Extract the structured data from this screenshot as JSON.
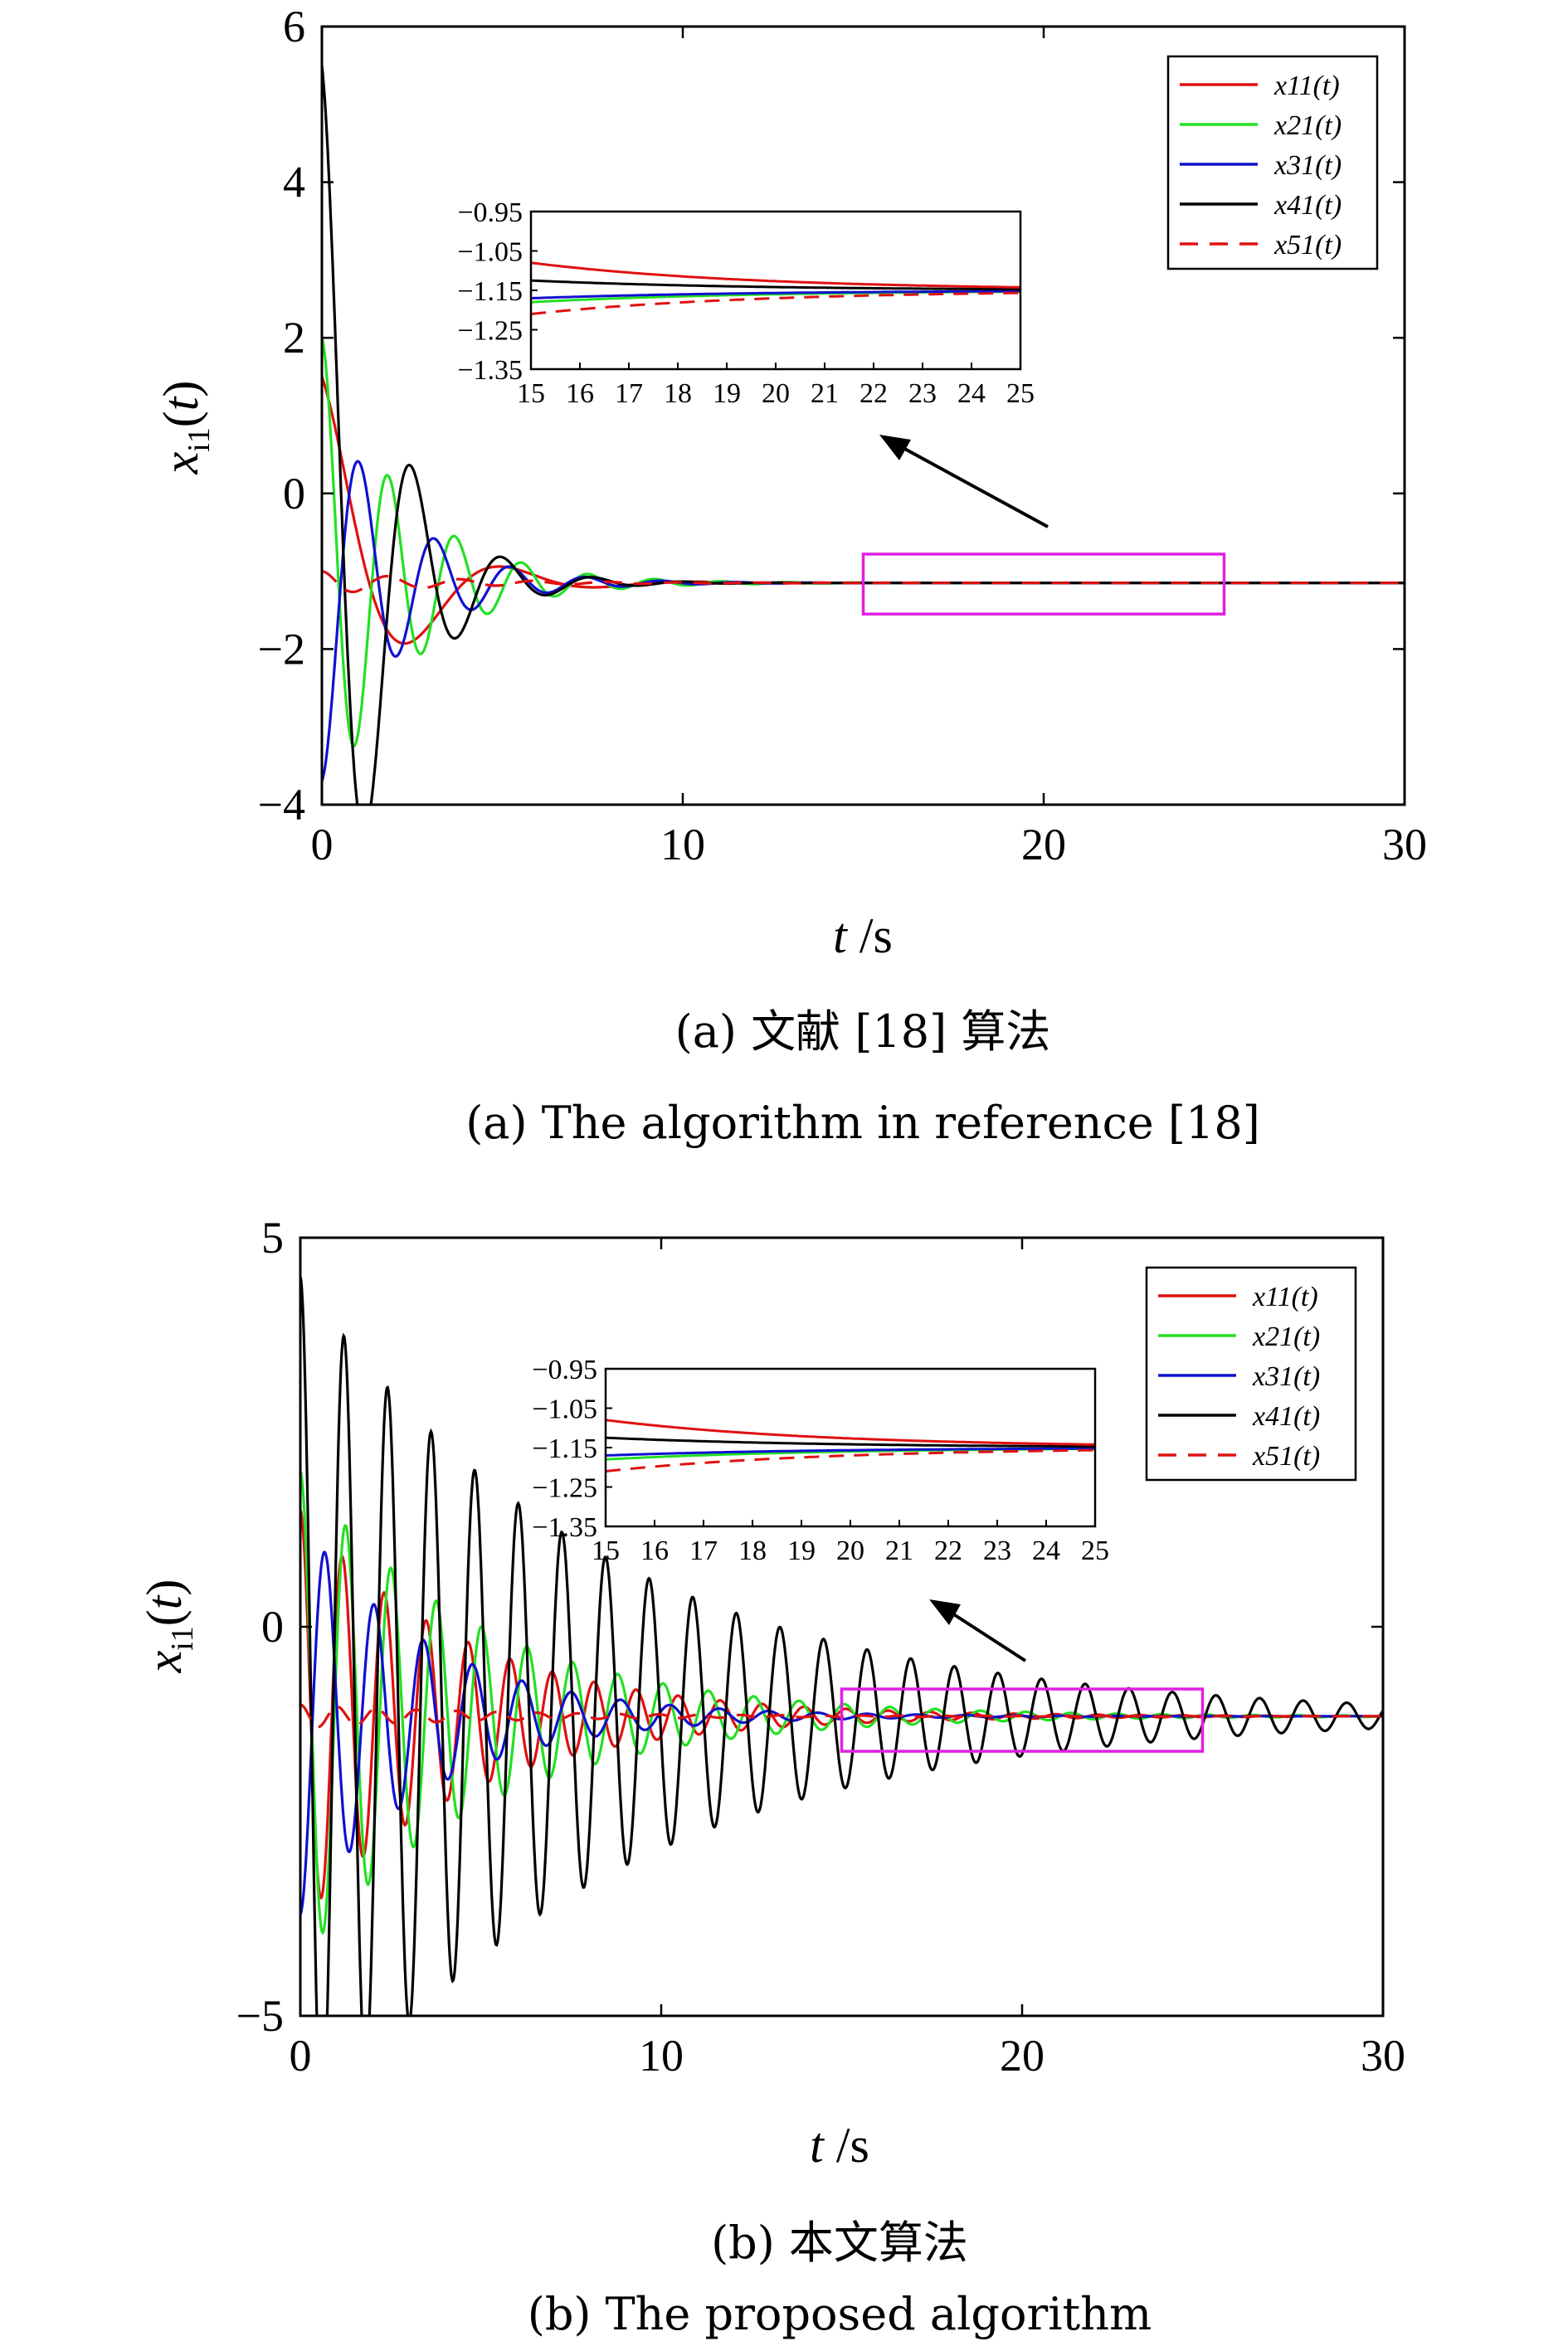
{
  "chart_data": [
    {
      "type": "line",
      "caption_cn": "(a) 文献 [18] 算法",
      "caption_en": "(a) The algorithm in reference [18]",
      "xlabel": "t /s",
      "ylabel": "x_i1(t)",
      "xlim": [
        0,
        30
      ],
      "ylim": [
        -4,
        6
      ],
      "xticks": [
        "0",
        "10",
        "20",
        "30"
      ],
      "yticks": [
        "−4",
        "−2",
        "0",
        "2",
        "4",
        "6"
      ],
      "legend_position": "top-right",
      "series": [
        {
          "name": "x11(t)",
          "color": "#e01010",
          "dash": false,
          "x0": 1.5,
          "amp": 2.65,
          "decay": 0.5,
          "freq": 1.2,
          "phase": 0.0
        },
        {
          "name": "x21(t)",
          "color": "#22e022",
          "dash": false,
          "x0": 2.0,
          "amp": 3.2,
          "decay": 0.45,
          "freq": 3.4,
          "phase": 0.0
        },
        {
          "name": "x31(t)",
          "color": "#1010d0",
          "dash": false,
          "x0": -3.7,
          "amp": -2.55,
          "decay": 0.48,
          "freq": 3.0,
          "phase": 0.0
        },
        {
          "name": "x41(t)",
          "color": "#000000",
          "dash": false,
          "x0": 5.5,
          "amp": 6.65,
          "decay": 0.6,
          "freq": 2.5,
          "phase": 0.0
        },
        {
          "name": "x51(t)",
          "color": "#e01010",
          "dash": true,
          "x0": -1.0,
          "amp": -1.0,
          "decay": 0.3,
          "freq": 3.1,
          "phase": 0.7
        }
      ],
      "equilibrium": -1.15,
      "highlight_box": {
        "x": [
          15,
          25
        ],
        "y": [
          -1.55,
          -0.78
        ]
      },
      "inset": {
        "xlim": [
          15,
          25
        ],
        "ylim": [
          -1.35,
          -0.95
        ],
        "xticks": [
          "15",
          "16",
          "17",
          "18",
          "19",
          "20",
          "21",
          "22",
          "23",
          "24",
          "25"
        ],
        "yticks": [
          "−0.95",
          "−1.05",
          "−1.15",
          "−1.25",
          "−1.35"
        ]
      }
    },
    {
      "type": "line",
      "caption_cn": "(b) 本文算法",
      "caption_en": "(b) The proposed algorithm",
      "xlabel": "t /s",
      "ylabel": "x_i1(t)",
      "xlim": [
        0,
        30
      ],
      "ylim": [
        -5,
        5
      ],
      "xticks": [
        "0",
        "10",
        "20",
        "30"
      ],
      "yticks": [
        "−5",
        "0",
        "5"
      ],
      "legend_position": "top-right",
      "series": [
        {
          "name": "x11(t)",
          "color": "#e01010",
          "dash": false,
          "x0": 1.5,
          "amp": 2.6,
          "decay": 0.22,
          "freq": 5.4,
          "phase": 0.0
        },
        {
          "name": "x21(t)",
          "color": "#22e022",
          "dash": false,
          "x0": 2.0,
          "amp": 3.3,
          "decay": 0.2,
          "freq": 5.0,
          "phase": 0.0
        },
        {
          "name": "x31(t)",
          "color": "#1010d0",
          "dash": false,
          "x0": -3.7,
          "amp": -2.6,
          "decay": 0.28,
          "freq": 4.6,
          "phase": 0.0
        },
        {
          "name": "x41(t)",
          "color": "#000000",
          "dash": false,
          "x0": 4.5,
          "amp": 5.6,
          "decay": 0.12,
          "freq": 5.2,
          "phase": 0.0
        },
        {
          "name": "x51(t)",
          "color": "#e01010",
          "dash": true,
          "x0": -1.0,
          "amp": -1.5,
          "decay": 0.18,
          "freq": 5.6,
          "phase": 0.9
        }
      ],
      "equilibrium": -1.15,
      "highlight_box": {
        "x": [
          15,
          25
        ],
        "y": [
          -1.6,
          -0.8
        ]
      },
      "inset": {
        "xlim": [
          15,
          25
        ],
        "ylim": [
          -1.35,
          -0.95
        ],
        "xticks": [
          "15",
          "16",
          "17",
          "18",
          "19",
          "20",
          "21",
          "22",
          "23",
          "24",
          "25"
        ],
        "yticks": [
          "−0.95",
          "−1.05",
          "−1.15",
          "−1.25",
          "−1.35"
        ]
      }
    }
  ]
}
